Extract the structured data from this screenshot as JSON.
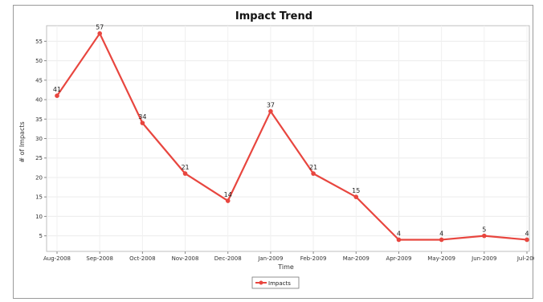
{
  "chart_data": {
    "type": "line",
    "title": "Impact Trend",
    "xlabel": "Time",
    "ylabel": "# of Impacts",
    "categories": [
      "Aug-2008",
      "Sep-2008",
      "Oct-2008",
      "Nov-2008",
      "Dec-2008",
      "Jan-2009",
      "Feb-2009",
      "Mar-2009",
      "Apr-2009",
      "May-2009",
      "Jun-2009",
      "Jul-200"
    ],
    "series": [
      {
        "name": "Impacts",
        "color": "#e8463f",
        "values": [
          41,
          57,
          34,
          21,
          14,
          37,
          21,
          15,
          4,
          4,
          5,
          4
        ]
      }
    ],
    "data_labels": [
      "41",
      "57",
      "34",
      "21",
      "14",
      "37",
      "21",
      "15",
      "4",
      "4",
      "5",
      "4"
    ],
    "yticks": [
      5,
      10,
      15,
      20,
      25,
      30,
      35,
      40,
      45,
      50,
      55
    ],
    "ylim": [
      1,
      59
    ],
    "grid": true,
    "legend_position": "bottom-center"
  }
}
